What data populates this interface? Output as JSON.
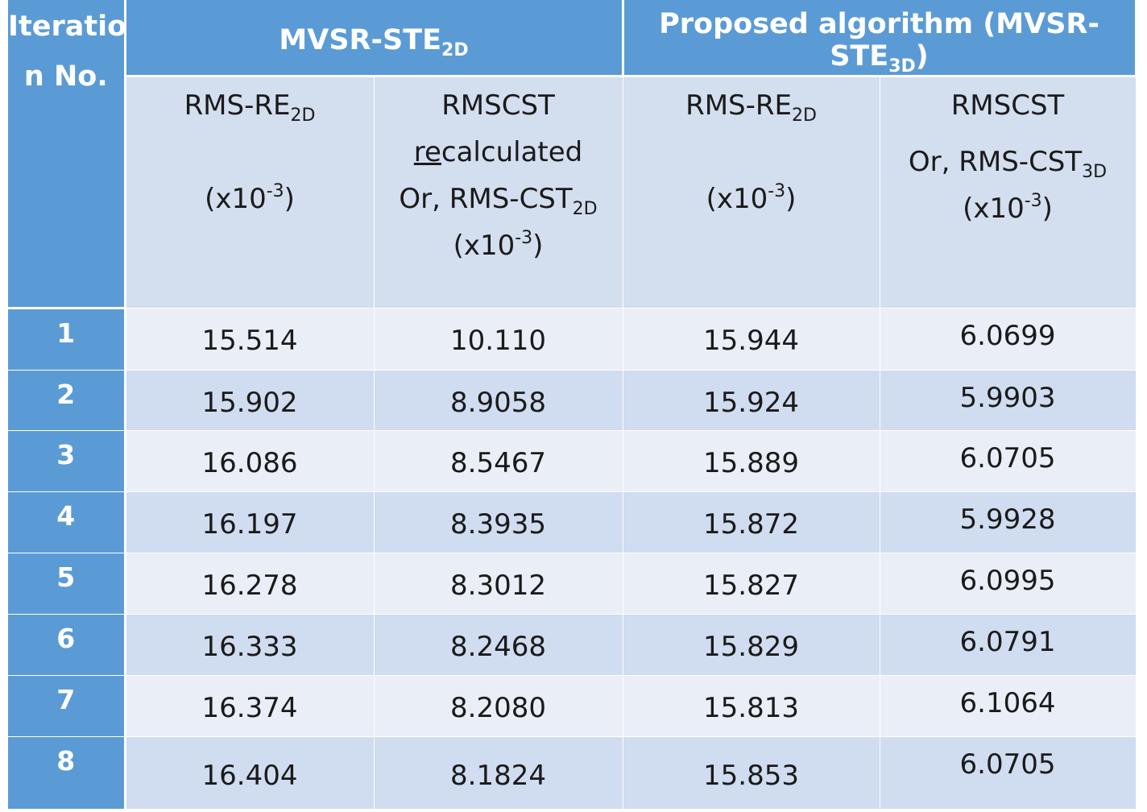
{
  "table": {
    "iteration_header": [
      "Iteratio",
      "n No."
    ],
    "group_2d": {
      "base": "MVSR-STE",
      "sub": "2D"
    },
    "group_3d": {
      "base": "Proposed algorithm (MVSR-STE",
      "sub": "3D",
      "tail": ")"
    },
    "col1": {
      "base": "RMS-RE",
      "sub": "2D",
      "unit_pre": "(x10",
      "unit_exp": "-3",
      "unit_post": ")"
    },
    "col2": {
      "line1": "RMSCST",
      "line2_ul": "re",
      "line2_rest": "calculated",
      "line3_base": "Or, RMS-CST",
      "line3_sub": "2D",
      "unit_pre": "(x10",
      "unit_exp": "-3",
      "unit_post": ")"
    },
    "col3": {
      "base": "RMS-RE",
      "sub": "2D",
      "unit_pre": "(x10",
      "unit_exp": "-3",
      "unit_post": ")"
    },
    "col4": {
      "line1": "RMSCST",
      "line2_base": "Or, RMS-CST",
      "line2_sub": "3D",
      "unit_pre": "(x10",
      "unit_exp": "-3",
      "unit_post": ")"
    },
    "rows": [
      {
        "iter": "1",
        "rms_re_2d": "15.514",
        "rmscst_2d": "10.110",
        "rms_re_3d": "15.944",
        "rmscst_3d": "6.0699"
      },
      {
        "iter": "2",
        "rms_re_2d": "15.902",
        "rmscst_2d": "8.9058",
        "rms_re_3d": "15.924",
        "rmscst_3d": "5.9903"
      },
      {
        "iter": "3",
        "rms_re_2d": "16.086",
        "rmscst_2d": "8.5467",
        "rms_re_3d": "15.889",
        "rmscst_3d": "6.0705"
      },
      {
        "iter": "4",
        "rms_re_2d": "16.197",
        "rmscst_2d": "8.3935",
        "rms_re_3d": "15.872",
        "rmscst_3d": "5.9928"
      },
      {
        "iter": "5",
        "rms_re_2d": "16.278",
        "rmscst_2d": "8.3012",
        "rms_re_3d": "15.827",
        "rmscst_3d": "6.0995"
      },
      {
        "iter": "6",
        "rms_re_2d": "16.333",
        "rmscst_2d": "8.2468",
        "rms_re_3d": "15.829",
        "rmscst_3d": "6.0791"
      },
      {
        "iter": "7",
        "rms_re_2d": "16.374",
        "rmscst_2d": "8.2080",
        "rms_re_3d": "15.813",
        "rmscst_3d": "6.1064"
      },
      {
        "iter": "8",
        "rms_re_2d": "16.404",
        "rmscst_2d": "8.1824",
        "rms_re_3d": "15.853",
        "rmscst_3d": "6.0705"
      }
    ]
  },
  "colors": {
    "header_blue": "#5b9bd5",
    "row_light": "#e9eef7",
    "row_dark": "#d0dcef",
    "subheader": "#d3deef"
  }
}
